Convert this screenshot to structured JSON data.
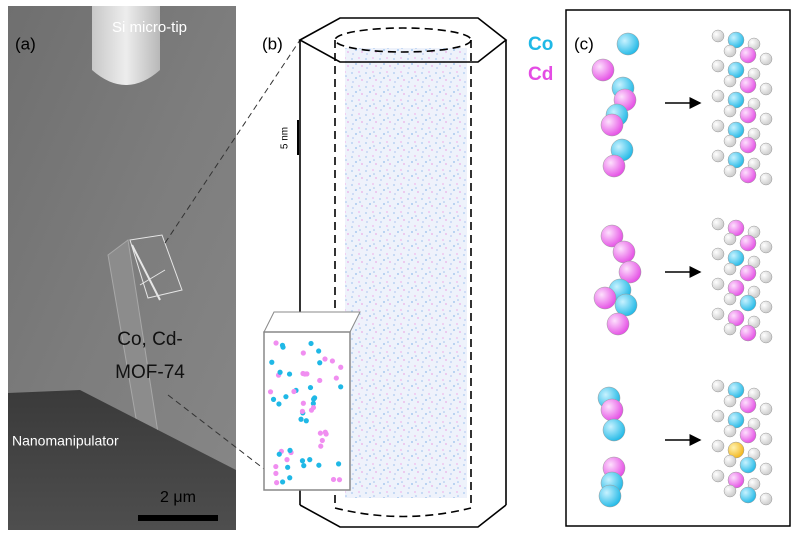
{
  "panel_a": {
    "label": "(a)",
    "tip_label": "Si micro-tip",
    "sample_label": [
      "Co, Cd-",
      "MOF-74"
    ],
    "manipulator_label": "Nanomanipulator",
    "scale_bar": "2 μm"
  },
  "panel_b": {
    "label": "(b)",
    "scale_bar": "5 nm",
    "legend": [
      {
        "name": "Co",
        "color": "#1fb8e6"
      },
      {
        "name": "Cd",
        "color": "#e44ce4"
      }
    ]
  },
  "panel_c": {
    "label": "(c)"
  }
}
